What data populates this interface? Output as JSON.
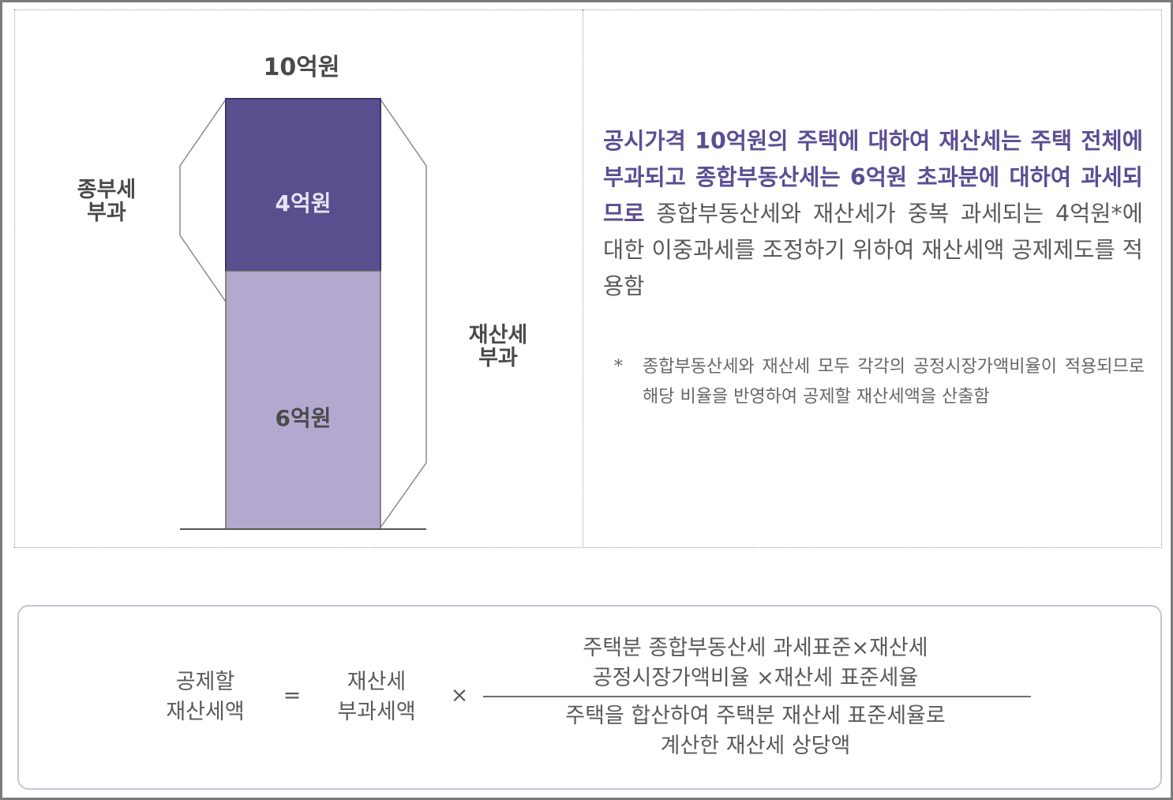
{
  "diagram": {
    "total_label": "10억원",
    "upper_block_label": "4억원",
    "lower_block_label": "6억원",
    "left_bracket_label": [
      "종부세",
      "부과"
    ],
    "right_bracket_label": [
      "재산세",
      "부과"
    ],
    "upper_block_value": 4,
    "lower_block_value": 6,
    "colors": {
      "upper_block": "#5b4e8e",
      "lower_block": "#b3a9cf",
      "bracket_line": "#8a8a8a"
    }
  },
  "explanation": {
    "highlighted": "공시가격 10억원의 주택에 대하여 재산세는 주택 전체에 부과되고 종합부동산세는 6억원 초과분에 대하여 과세되므로",
    "rest": " 종합부동산세와 재산세가 중복 과세되는 4억원*에 대한 이중과세를 조정하기 위하여 재산세액 공제제도를 적용함",
    "note_marker": "*",
    "note": "종합부동산세와 재산세 모두 각각의 공정시장가액비율이 적용되므로 해당 비율을 반영하여 공제할 재산세액을 산출함",
    "highlight_color": "#5b4e93"
  },
  "formula": {
    "lhs": [
      "공제할",
      "재산세액"
    ],
    "equals": "=",
    "factor": [
      "재산세",
      "부과세액"
    ],
    "times": "×",
    "numerator": [
      "주택분 종합부동산세 과세표준×재산세",
      "공정시장가액비율 ×재산세 표준세율"
    ],
    "denominator": [
      "주택을 합산하여 주택분 재산세 표준세율로",
      "계산한 재산세 상당액"
    ]
  }
}
